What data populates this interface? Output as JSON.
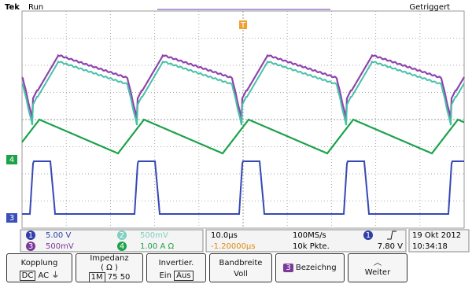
{
  "header": {
    "brand": "Tek",
    "state": "Run",
    "trigger_state": "Getriggert",
    "trigger_marker": "T"
  },
  "channel_markers": {
    "ch4": "4",
    "ch3": "3"
  },
  "status": {
    "ch1_badge": "1",
    "ch1_scale": "5.00 V",
    "ch2_badge": "2",
    "ch2_scale": "500mV",
    "ch3_badge": "3",
    "ch3_scale": "500mV",
    "ch4_badge": "4",
    "ch4_scale": "1.00 A Ω",
    "timebase": "10.0µs",
    "sample_rate": "100MS/s",
    "trigger_source": "1",
    "trigger_level": "7.80 V",
    "date": "19 Okt 2012",
    "position": "-1.20000µs",
    "record_length": "10k Pkte.",
    "time": "10:34:18"
  },
  "menu": {
    "coupling": {
      "title": "Kopplung",
      "options": [
        "DC",
        "AC",
        "⏚"
      ]
    },
    "impedance": {
      "title": "Impedanz",
      "unit": "( Ω )",
      "options": [
        "1M",
        "75",
        "50"
      ]
    },
    "invert": {
      "title": "Invertier.",
      "options": [
        "Ein",
        "Aus"
      ]
    },
    "bandwidth": {
      "title": "Bandbreite",
      "value": "Voll"
    },
    "label": {
      "badge": "3",
      "title": "Bezeichng"
    },
    "more": {
      "title": "Weiter"
    }
  }
}
